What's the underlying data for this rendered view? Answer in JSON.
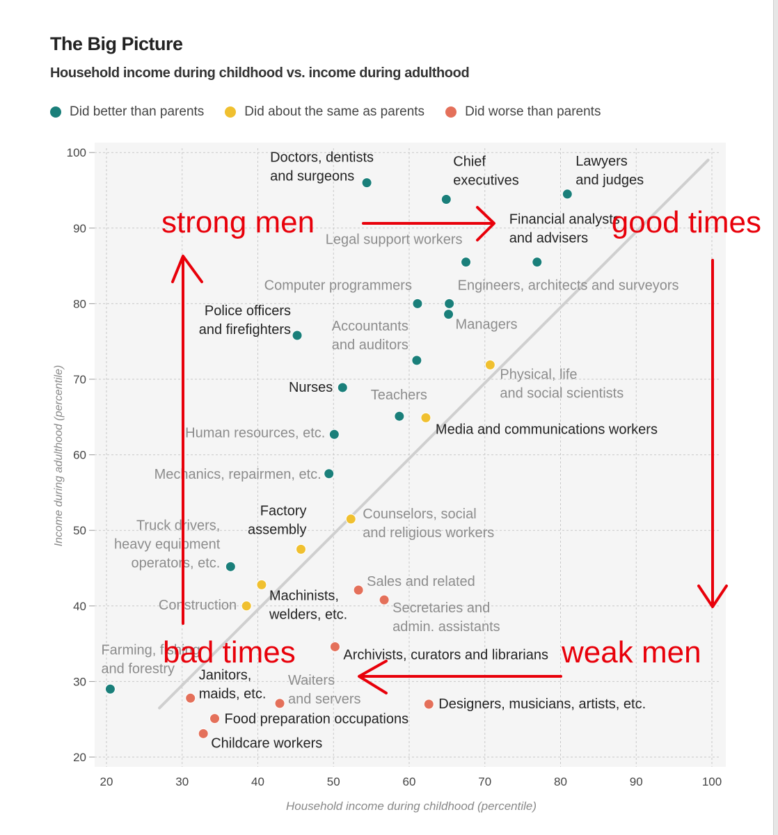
{
  "header": {
    "title": "The Big Picture",
    "subtitle": "Household income during childhood vs. income during adulthood"
  },
  "legend": {
    "items": [
      {
        "label": "Did better than parents",
        "color": "#1a7f7a"
      },
      {
        "label": "Did about the same as parents",
        "color": "#f0c02f"
      },
      {
        "label": "Did worse than parents",
        "color": "#e4705a"
      }
    ]
  },
  "colors": {
    "better": "#1a7f7a",
    "same": "#f0c02f",
    "worse": "#e4705a",
    "label_dark": "#222222",
    "label_light": "#8c8c8c",
    "annotation": "#e8000a",
    "diagonal": "#cfcfcf"
  },
  "chart_data": {
    "type": "scatter",
    "title": "Household income during childhood vs. income during adulthood",
    "xlabel": "Household income during childhood (percentile)",
    "ylabel": "Income during adulthood (percentile)",
    "xlim": [
      19,
      102
    ],
    "ylim": [
      19,
      101
    ],
    "xticks": [
      20,
      30,
      40,
      50,
      60,
      70,
      80,
      90,
      100
    ],
    "yticks": [
      20,
      30,
      40,
      50,
      60,
      70,
      80,
      90,
      100
    ],
    "grid": true,
    "reference_line": {
      "from": [
        27,
        26.5
      ],
      "to": [
        99.5,
        99
      ]
    },
    "points": [
      {
        "label": "Doctors, dentists\nand surgeons",
        "x": 54.4,
        "y": 96,
        "group": "better",
        "tone": "dark"
      },
      {
        "label": "Chief\nexecutives",
        "x": 64.9,
        "y": 93.8,
        "group": "better",
        "tone": "dark"
      },
      {
        "label": "Lawyers\nand judges",
        "x": 80.9,
        "y": 94.5,
        "group": "better",
        "tone": "dark"
      },
      {
        "label": "Financial analysts\nand advisers",
        "x": 76.9,
        "y": 85.5,
        "group": "better",
        "tone": "dark"
      },
      {
        "label": "Legal support workers",
        "x": 67.5,
        "y": 85.5,
        "group": "better",
        "tone": "light"
      },
      {
        "label": "Computer programmers",
        "x": 61.1,
        "y": 80,
        "group": "better",
        "tone": "light"
      },
      {
        "label": "Engineers, architects and surveyors",
        "x": 65.3,
        "y": 80,
        "group": "better",
        "tone": "light"
      },
      {
        "label": "Managers",
        "x": 65.2,
        "y": 78.6,
        "group": "better",
        "tone": "light"
      },
      {
        "label": "Police officers\nand firefighters",
        "x": 45.2,
        "y": 75.8,
        "group": "better",
        "tone": "dark"
      },
      {
        "label": "Accountants\nand auditors",
        "x": 61,
        "y": 72.5,
        "group": "better",
        "tone": "light"
      },
      {
        "label": "Physical, life\nand social scientists",
        "x": 70.7,
        "y": 71.9,
        "group": "same",
        "tone": "light"
      },
      {
        "label": "Nurses",
        "x": 51.2,
        "y": 68.9,
        "group": "better",
        "tone": "dark"
      },
      {
        "label": "Teachers",
        "x": 58.7,
        "y": 65.1,
        "group": "better",
        "tone": "light"
      },
      {
        "label": "Media and communications workers",
        "x": 62.2,
        "y": 64.9,
        "group": "same",
        "tone": "dark"
      },
      {
        "label": "Human resources, etc.",
        "x": 50.1,
        "y": 62.7,
        "group": "better",
        "tone": "light"
      },
      {
        "label": "Mechanics, repairmen, etc.",
        "x": 49.4,
        "y": 57.5,
        "group": "better",
        "tone": "light"
      },
      {
        "label": "Counselors, social\nand religious workers",
        "x": 52.3,
        "y": 51.5,
        "group": "same",
        "tone": "light"
      },
      {
        "label": "Factory\nassembly",
        "x": 45.7,
        "y": 47.5,
        "group": "same",
        "tone": "dark"
      },
      {
        "label": "Truck drivers,\nheavy equipment\noperators, etc.",
        "x": 36.4,
        "y": 45.2,
        "group": "better",
        "tone": "light"
      },
      {
        "label": "",
        "x": 40.5,
        "y": 42.8,
        "group": "same",
        "tone": "light"
      },
      {
        "label": "Machinists,\nwelders, etc.",
        "x": 40.5,
        "y": 42.8,
        "group": "same",
        "tone": "dark",
        "dotless": true
      },
      {
        "label": "Sales and related",
        "x": 53.3,
        "y": 42.1,
        "group": "worse",
        "tone": "light"
      },
      {
        "label": "Secretaries and\nadmin. assistants",
        "x": 56.7,
        "y": 40.8,
        "group": "worse",
        "tone": "light"
      },
      {
        "label": "Construction",
        "x": 38.5,
        "y": 40,
        "group": "same",
        "tone": "light"
      },
      {
        "label": "Archivists, curators and librarians",
        "x": 50.2,
        "y": 34.6,
        "group": "worse",
        "tone": "dark"
      },
      {
        "label": "Farming, fishing\nand forestry",
        "x": 20.5,
        "y": 29,
        "group": "better",
        "tone": "light"
      },
      {
        "label": "Janitors,\nmaids, etc.",
        "x": 31.1,
        "y": 27.8,
        "group": "worse",
        "tone": "dark"
      },
      {
        "label": "Waiters\nand servers",
        "x": 42.9,
        "y": 27.1,
        "group": "worse",
        "tone": "light"
      },
      {
        "label": "Designers, musicians, artists, etc.",
        "x": 62.6,
        "y": 27,
        "group": "worse",
        "tone": "dark"
      },
      {
        "label": "Food preparation occupations",
        "x": 34.3,
        "y": 25.1,
        "group": "worse",
        "tone": "dark"
      },
      {
        "label": "Childcare workers",
        "x": 32.8,
        "y": 23.1,
        "group": "worse",
        "tone": "dark"
      }
    ],
    "annotations": [
      {
        "text": "strong men"
      },
      {
        "text": "good times"
      },
      {
        "text": "weak men"
      },
      {
        "text": "bad times"
      }
    ]
  }
}
